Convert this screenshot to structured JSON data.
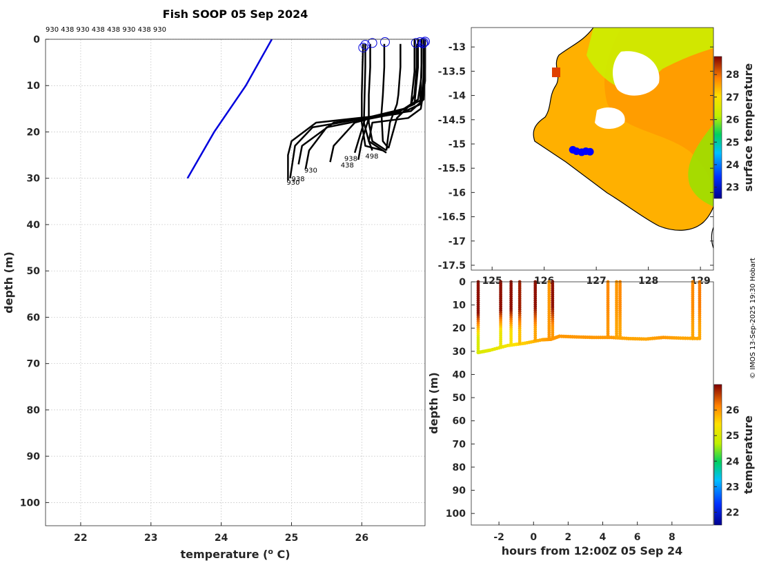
{
  "chart_data": [
    {
      "type": "line",
      "title": "Fish SOOP 05 Sep 2024",
      "header_ids": "930 438 930 438 438 930 438 930",
      "xlabel": "temperature (",
      "xlabel_sup": "o",
      "xlabel_tail": " C)",
      "ylabel": "depth (m)",
      "xlim": [
        21.5,
        26.9
      ],
      "ylim": [
        105,
        0
      ],
      "y_reversed": true,
      "grid": true,
      "xticks": [
        22,
        23,
        24,
        25,
        26
      ],
      "yticks": [
        0,
        10,
        20,
        30,
        40,
        50,
        60,
        70,
        80,
        90,
        100
      ],
      "climatology": {
        "color": "#0000dd",
        "x": [
          24.72,
          24.35,
          23.9,
          23.52
        ],
        "y": [
          0,
          10,
          20,
          30
        ]
      },
      "profile_color": "#000000",
      "profiles": [
        {
          "x": [
            26.85,
            26.85,
            26.83,
            26.55,
            25.35,
            25.0,
            24.95,
            24.95
          ],
          "y": [
            0,
            5,
            14,
            16,
            18,
            22,
            25,
            30.5
          ]
        },
        {
          "x": [
            26.8,
            26.8,
            26.75,
            26.45,
            25.3,
            25.05,
            25.02,
            24.98
          ],
          "y": [
            0,
            6,
            14,
            16,
            19,
            23,
            26,
            30
          ]
        },
        {
          "x": [
            26.9,
            26.9,
            26.88,
            26.7,
            25.6,
            25.15,
            25.1
          ],
          "y": [
            0,
            6,
            13,
            15.5,
            18,
            23,
            27
          ]
        },
        {
          "x": [
            26.75,
            26.75,
            26.7,
            26.5,
            25.5,
            25.25,
            25.2
          ],
          "y": [
            0,
            7,
            14,
            16,
            19,
            24,
            28
          ]
        },
        {
          "x": [
            26.85,
            26.85,
            26.8,
            26.62,
            25.9,
            25.6,
            25.55
          ],
          "y": [
            0,
            8,
            13,
            15,
            18,
            23,
            26.5
          ]
        },
        {
          "x": [
            26.88,
            26.88,
            26.84,
            26.55,
            26.1,
            26.0,
            25.95
          ],
          "y": [
            0,
            8,
            14,
            16,
            17,
            22,
            26
          ]
        },
        {
          "x": [
            26.9,
            26.9,
            26.86,
            26.6,
            26.05,
            25.95,
            25.9
          ],
          "y": [
            0,
            9,
            13,
            15,
            17,
            22,
            24.5
          ]
        },
        {
          "x": [
            26.9,
            26.9,
            26.84,
            26.66,
            26.15,
            26.1,
            26.15
          ],
          "y": [
            0,
            9,
            15,
            17,
            18,
            22,
            24
          ]
        },
        {
          "x": [
            26.02,
            26.01,
            26.0,
            26.0,
            26.05,
            26.3
          ],
          "y": [
            1,
            6,
            12,
            18,
            23,
            24
          ]
        },
        {
          "x": [
            26.05,
            26.05,
            26.04,
            26.03,
            26.1,
            26.35
          ],
          "y": [
            1,
            6,
            12,
            18,
            22,
            24.5
          ]
        },
        {
          "x": [
            26.12,
            26.12,
            26.1,
            26.1,
            26.15,
            26.35
          ],
          "y": [
            1,
            6,
            12,
            18,
            22,
            24
          ]
        },
        {
          "x": [
            26.32,
            26.32,
            26.3,
            26.28,
            26.3,
            26.38
          ],
          "y": [
            1,
            6,
            12,
            16,
            22,
            23.5
          ]
        },
        {
          "x": [
            26.55,
            26.55,
            26.52,
            26.5,
            26.4,
            26.35
          ],
          "y": [
            1,
            6,
            12,
            14,
            18,
            24
          ]
        },
        {
          "x": [
            26.78,
            26.78,
            26.75,
            26.7,
            26.5,
            26.38
          ],
          "y": [
            1,
            6,
            12,
            14,
            17,
            23.5
          ]
        }
      ],
      "markers": {
        "color": "#0000dd",
        "shape": "circle",
        "x": [
          26.02,
          26.05,
          26.15,
          26.33,
          26.77,
          26.83,
          26.87,
          26.9,
          26.88
        ],
        "y": [
          1.8,
          1.2,
          0.8,
          0.6,
          0.8,
          0.6,
          0.9,
          0.5,
          0.7
        ]
      },
      "annotations": [
        {
          "text": "938",
          "x": 25.75,
          "y": 25.8
        },
        {
          "text": "438",
          "x": 25.7,
          "y": 27.2
        },
        {
          "text": "498",
          "x": 26.05,
          "y": 25.3
        },
        {
          "text": "930",
          "x": 25.18,
          "y": 28.3
        },
        {
          "text": "938",
          "x": 25.0,
          "y": 30.2
        },
        {
          "text": "930",
          "x": 24.93,
          "y": 30.9
        }
      ]
    },
    {
      "type": "heatmap",
      "colorbar_label": "surface temperature",
      "clim": [
        22.5,
        28.8
      ],
      "colorbar_ticks": [
        23,
        24,
        25,
        26,
        27,
        28
      ],
      "xlim": [
        124.6,
        129.25
      ],
      "ylim": [
        -17.6,
        -12.6
      ],
      "xticks": [
        125,
        126,
        127,
        128,
        129
      ],
      "yticks": [
        -13,
        -13.5,
        -14,
        -14.5,
        -15,
        -15.5,
        -16,
        -16.5,
        -17,
        -17.5
      ],
      "track": {
        "color": "#0000ff",
        "lon": [
          126.55,
          126.62,
          126.72,
          126.8,
          126.88
        ],
        "lat": [
          -15.12,
          -15.15,
          -15.17,
          -15.15,
          -15.16
        ]
      }
    },
    {
      "type": "scatter",
      "xlabel": "hours from 12:00Z 05 Sep 24",
      "ylabel": "depth (m)",
      "colorbar_label": "temperature",
      "xlim": [
        -3.6,
        10.4
      ],
      "ylim": [
        105,
        0
      ],
      "y_reversed": true,
      "xticks": [
        -2,
        0,
        2,
        4,
        6,
        8
      ],
      "yticks": [
        0,
        10,
        20,
        30,
        40,
        50,
        60,
        70,
        80,
        90,
        100
      ],
      "clim": [
        21.5,
        27.0
      ],
      "colorbar_ticks": [
        22,
        23,
        24,
        25,
        26
      ],
      "casts": [
        {
          "t": -3.2,
          "bottom": 30.5,
          "top_temp": 26.9,
          "bottom_temp": 25.0
        },
        {
          "t": -1.9,
          "bottom": 27.5,
          "top_temp": 26.9,
          "bottom_temp": 25.2
        },
        {
          "t": -1.3,
          "bottom": 27.0,
          "top_temp": 26.9,
          "bottom_temp": 25.4
        },
        {
          "t": -0.8,
          "bottom": 26.5,
          "top_temp": 26.8,
          "bottom_temp": 25.7
        },
        {
          "t": 0.1,
          "bottom": 25.0,
          "top_temp": 26.9,
          "bottom_temp": 25.9
        },
        {
          "t": 0.9,
          "bottom": 24.5,
          "top_temp": 26.0,
          "bottom_temp": 26.0
        },
        {
          "t": 1.1,
          "bottom": 24.5,
          "top_temp": 26.9,
          "bottom_temp": 26.0
        },
        {
          "t": 4.3,
          "bottom": 24.0,
          "top_temp": 26.1,
          "bottom_temp": 26.0
        },
        {
          "t": 4.8,
          "bottom": 24.0,
          "top_temp": 26.0,
          "bottom_temp": 25.9
        },
        {
          "t": 5.0,
          "bottom": 24.0,
          "top_temp": 26.1,
          "bottom_temp": 25.9
        },
        {
          "t": 9.2,
          "bottom": 24.5,
          "top_temp": 26.1,
          "bottom_temp": 25.9
        },
        {
          "t": 9.6,
          "bottom": 24.5,
          "top_temp": 26.2,
          "bottom_temp": 25.9
        }
      ],
      "bottom_trace": {
        "t": [
          -3.2,
          -2.5,
          -1.5,
          -0.5,
          0.5,
          1.0,
          1.5,
          2.5,
          3.5,
          4.5,
          5.5,
          6.5,
          7.5,
          8.5,
          9.6
        ],
        "depth": [
          30.5,
          29.5,
          27.5,
          26.5,
          25.0,
          24.8,
          23.5,
          23.8,
          24.0,
          24.0,
          24.5,
          24.7,
          24.0,
          24.3,
          24.5
        ],
        "temp": [
          25.0,
          25.1,
          25.3,
          25.6,
          25.9,
          26.0,
          26.0,
          26.0,
          26.0,
          26.0,
          25.9,
          25.9,
          26.0,
          25.9,
          25.9
        ]
      }
    }
  ],
  "watermark": "© IMOS 13-Sep-2025 19:30 Hobart"
}
